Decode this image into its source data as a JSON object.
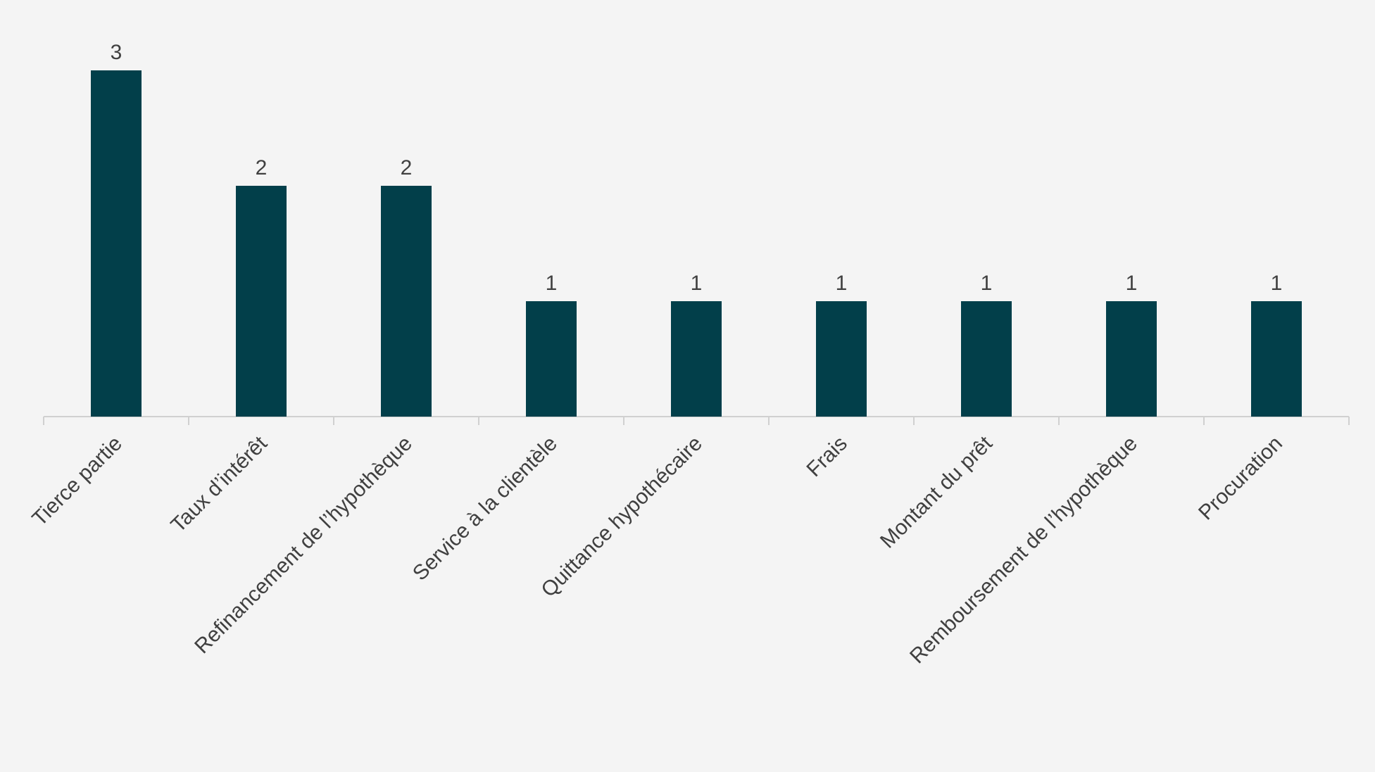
{
  "chart_data": {
    "type": "bar",
    "categories": [
      "Tierce partie",
      "Taux d’intérêt",
      "Refinancement de l’hypothèque",
      "Service à la clientèle",
      "Quittance hypothécaire",
      "Frais",
      "Montant du prêt",
      "Remboursement de l’hypothèque",
      "Procuration"
    ],
    "values": [
      3,
      2,
      2,
      1,
      1,
      1,
      1,
      1,
      1
    ],
    "color": "#023f4a",
    "ylim": [
      0,
      3
    ]
  }
}
